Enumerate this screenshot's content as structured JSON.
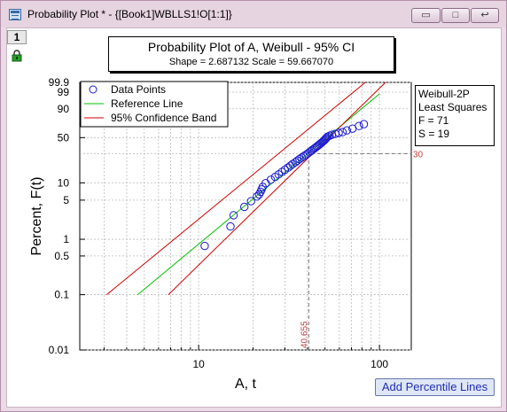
{
  "window": {
    "title": "Probability Plot * - {[Book1]WBLLS1!O[1:1]}",
    "buttons": [
      "▭",
      "□",
      "↩"
    ]
  },
  "layer": {
    "number": "1"
  },
  "plot_title": {
    "main": "Probability Plot of A, Weibull - 95% CI",
    "sub": "Shape = 2.687132  Scale = 59.667070"
  },
  "info": {
    "lines": [
      "Weibull-2P",
      "Least Squares",
      "F = 71",
      "S = 19"
    ]
  },
  "add_button": {
    "label": "Add Percentile Lines"
  },
  "chart_data": {
    "type": "scatter",
    "xlabel": "A, t",
    "ylabel": "Percent, F(t)",
    "x_scale": "log",
    "y_scale": "weibull",
    "xlim": [
      2.2,
      150
    ],
    "ylim": [
      0.01,
      99.9
    ],
    "x_ticks": [
      10,
      100
    ],
    "x_tick_labels": [
      "10",
      "100"
    ],
    "y_ticks": [
      0.01,
      0.1,
      0.5,
      1,
      5,
      10,
      50,
      90,
      99,
      99.9
    ],
    "y_tick_labels": [
      "0.01",
      "0.1",
      "0.5",
      "1",
      "5",
      "10",
      "50",
      "90",
      "99",
      "99.9"
    ],
    "y_extra_ticks": [
      30
    ],
    "grid": true,
    "legend": {
      "placement": "top-left",
      "entries": [
        "Data Points",
        "Reference Line",
        "95% Confidence Band"
      ]
    },
    "colors": {
      "points": "#1a1ad0",
      "reference": "#00c000",
      "band": "#d00000",
      "percentile": "#c04040"
    },
    "series": [
      {
        "name": "Data Points",
        "x": [
          10.8,
          15.0,
          15.6,
          17.9,
          19.5,
          21.0,
          21.6,
          22.0,
          22.3,
          22.6,
          23.5,
          25.1,
          26.5,
          27.7,
          28.9,
          30.0,
          31.2,
          32.2,
          33.1,
          34.3,
          35.2,
          36.1,
          37.1,
          38.2,
          39.2,
          40.1,
          41.0,
          41.8,
          42.6,
          43.5,
          44.3,
          45.1,
          45.9,
          46.7,
          47.4,
          48.1,
          48.8,
          49.5,
          50.1,
          50.6,
          51.1,
          51.8,
          53.0,
          54.6,
          57.0,
          59.5,
          62.5,
          66.0,
          71.0,
          77.0,
          82.0
        ],
        "y": [
          0.76,
          1.7,
          2.7,
          3.8,
          4.8,
          5.8,
          6.3,
          7.0,
          7.7,
          8.5,
          9.9,
          11.3,
          12.6,
          13.9,
          15.3,
          16.6,
          18.0,
          19.3,
          20.6,
          22.0,
          23.3,
          24.7,
          26.0,
          27.4,
          28.7,
          30.0,
          31.4,
          32.7,
          34.1,
          35.4,
          36.7,
          38.1,
          39.4,
          40.8,
          42.1,
          43.4,
          44.8,
          46.1,
          47.5,
          48.8,
          50.2,
          51.5,
          52.8,
          54.2,
          55.5,
          56.9,
          58.2,
          60.8,
          63.5,
          67.5,
          70.3
        ]
      },
      {
        "name": "Reference Line",
        "x": [
          4.6,
          100
        ],
        "y": [
          0.1,
          98.6
        ]
      },
      {
        "name": "95% Confidence Band",
        "x": [
          3.1,
          83.5
        ],
        "y": [
          0.1,
          99.9
        ]
      },
      {
        "name": "95% Confidence Band",
        "x": [
          6.8,
          108
        ],
        "y": [
          0.1,
          99.9
        ]
      }
    ],
    "percentile_line": {
      "percent": 30,
      "percent_label": "30",
      "value": 40.655,
      "value_label": "40.655"
    }
  }
}
